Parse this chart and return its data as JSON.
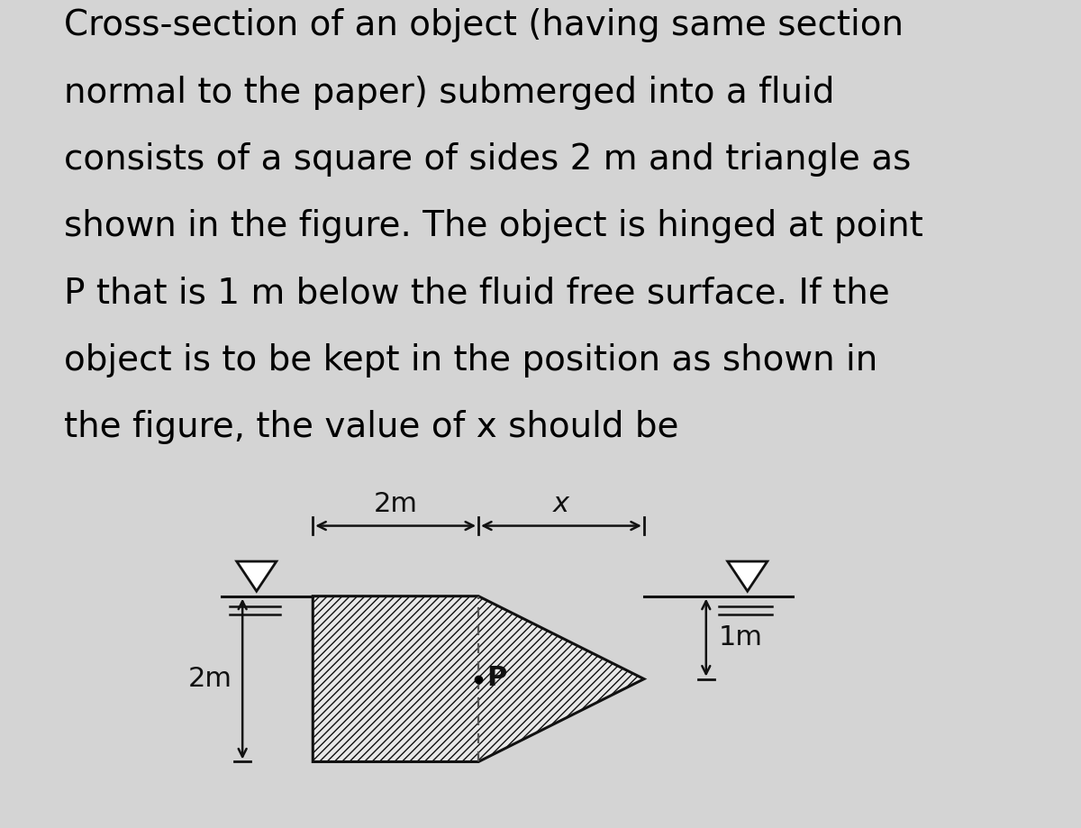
{
  "bg_color": "#d4d4d4",
  "title_lines": [
    "Cross-section of an object (having same section",
    "normal to the paper) submerged into a fluid",
    "consists of a square of sides 2 m and triangle as",
    "shown in the figure. The object is hinged at point",
    "P that is 1 m below the fluid free surface. If the",
    "object is to be kept in the position as shown in",
    "the figure, the value of x should be"
  ],
  "title_fontsize": 28,
  "title_ha": "left",
  "shape_edge_color": "#111111",
  "fluid_line_color": "#111111",
  "annotation_color": "#111111",
  "dim_fontsize": 22,
  "annotation_fontsize": 22,
  "hatch": "////",
  "shape_facecolor": "#e8e8e8",
  "dim_2m_label": "2m",
  "dim_x_label": "x",
  "dim_1m_label": "1m",
  "dim_2m_left_label": "2m"
}
